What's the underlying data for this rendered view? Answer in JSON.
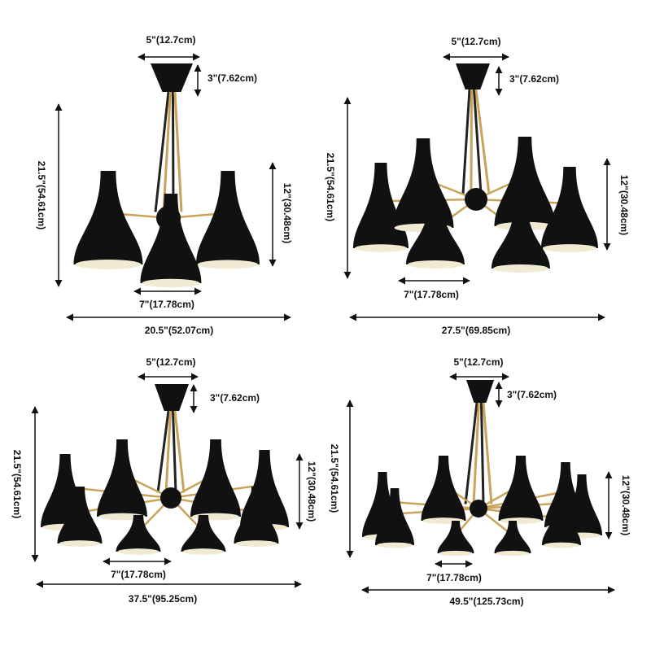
{
  "panels": [
    {
      "canopy_width": "5\"(12.7cm)",
      "canopy_height": "3\"(7.62cm)",
      "height": "21.5\"(54.61cm)",
      "shade_height": "12\"(30.48cm)",
      "shade_width": "7\"(17.78cm)",
      "width": "20.5\"(52.07cm)"
    },
    {
      "canopy_width": "5\"(12.7cm)",
      "canopy_height": "3\"(7.62cm)",
      "height": "21.5\"(54.61cm)",
      "shade_height": "12\"(30.48cm)",
      "shade_width": "7\"(17.78cm)",
      "width": "27.5\"(69.85cm)"
    },
    {
      "canopy_width": "5\"(12.7cm)",
      "canopy_height": "3\"(7.62cm)",
      "height": "21.5\"(54.61cm)",
      "shade_height": "12\"(30.48cm)",
      "shade_width": "7\"(17.78cm)",
      "width": "37.5\"(95.25cm)"
    },
    {
      "canopy_width": "5\"(12.7cm)",
      "canopy_height": "3\"(7.62cm)",
      "height": "21.5\"(54.61cm)",
      "shade_height": "12\"(30.48cm)",
      "shade_width": "7\"(17.78cm)",
      "width": "49.5\"(125.73cm)"
    }
  ]
}
